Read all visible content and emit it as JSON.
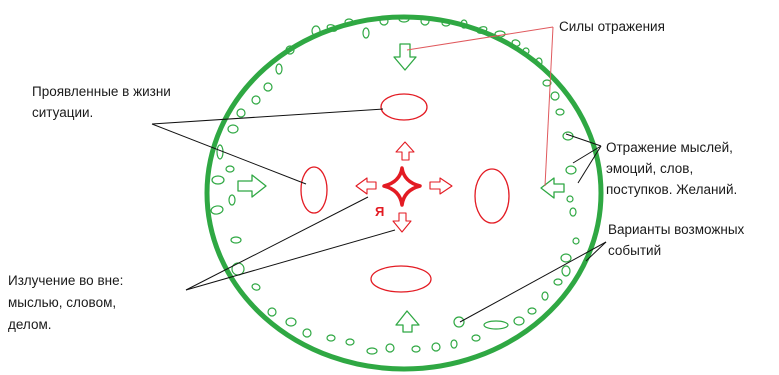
{
  "colors": {
    "circle": "#2fa843",
    "ellipse": "#2fa843",
    "red": "#e31b23",
    "pointer_black": "#111111",
    "pointer_red": "#e0595d",
    "text": "#1a1a1a"
  },
  "labels": {
    "reflection_forces": "Силы отражения",
    "situations": [
      "Проявленные в жизни",
      "ситуации."
    ],
    "reflection": [
      "Отражение мыслей,",
      "эмоций, слов,",
      "поступков. Желаний."
    ],
    "variants": [
      "Варианты возможных",
      "событий"
    ],
    "radiation": [
      "Излучение во вне:",
      "мыслью, словом,",
      "делом."
    ],
    "self": "Я"
  },
  "icons": {
    "green_arrows": "outline-arrow-icon",
    "red_arrows": "outline-arrow-icon",
    "center": "four-point-star-icon"
  }
}
